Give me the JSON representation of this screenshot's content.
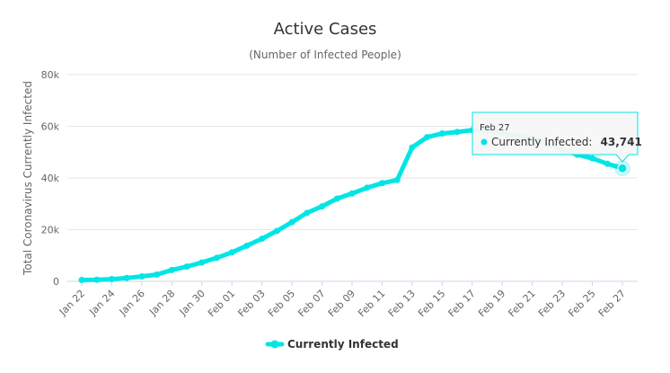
{
  "chart_data": {
    "type": "line",
    "title": "Active Cases",
    "subtitle": "(Number of Infected People)",
    "xlabel": "",
    "ylabel": "Total Coronavirus Currently Infected",
    "ylim": [
      0,
      80000
    ],
    "yticks": [
      0,
      20000,
      40000,
      60000,
      80000
    ],
    "ytick_labels": [
      "0",
      "20k",
      "40k",
      "60k",
      "80k"
    ],
    "xtick_labels": [
      "Jan 22",
      "Jan 24",
      "Jan 26",
      "Jan 28",
      "Jan 30",
      "Feb 01",
      "Feb 03",
      "Feb 05",
      "Feb 07",
      "Feb 09",
      "Feb 11",
      "Feb 13",
      "Feb 15",
      "Feb 17",
      "Feb 19",
      "Feb 21",
      "Feb 23",
      "Feb 25",
      "Feb 27"
    ],
    "grid": true,
    "legend_position": "bottom-center",
    "x": [
      "Jan 22",
      "Jan 23",
      "Jan 24",
      "Jan 25",
      "Jan 26",
      "Jan 27",
      "Jan 28",
      "Jan 29",
      "Jan 30",
      "Jan 31",
      "Feb 01",
      "Feb 02",
      "Feb 03",
      "Feb 04",
      "Feb 05",
      "Feb 06",
      "Feb 07",
      "Feb 08",
      "Feb 09",
      "Feb 10",
      "Feb 11",
      "Feb 12",
      "Feb 13",
      "Feb 14",
      "Feb 15",
      "Feb 16",
      "Feb 17",
      "Feb 18",
      "Feb 19",
      "Feb 20",
      "Feb 21",
      "Feb 22",
      "Feb 23",
      "Feb 24",
      "Feb 25",
      "Feb 26",
      "Feb 27"
    ],
    "series": [
      {
        "name": "Currently Infected",
        "color": "#00e5e5",
        "values": [
          520,
          600,
          850,
          1300,
          1900,
          2600,
          4400,
          5700,
          7300,
          9100,
          11200,
          13800,
          16500,
          19500,
          22900,
          26500,
          29000,
          32000,
          34000,
          36200,
          38000,
          39200,
          51800,
          55800,
          57200,
          57800,
          58500,
          58500,
          57500,
          56300,
          55200,
          53200,
          51000,
          49000,
          47600,
          45500,
          43741
        ]
      }
    ],
    "tooltip": {
      "date": "Feb 27",
      "label": "Currently Infected:",
      "value": "43,741"
    }
  }
}
